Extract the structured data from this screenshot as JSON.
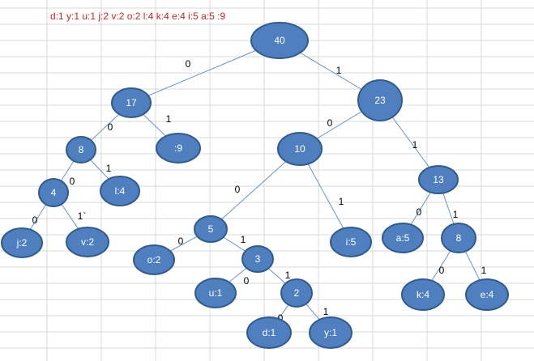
{
  "header": {
    "text": "d:1 y:1 u:1 j:2  v:2  o:2  l:4  k:4  e:4 i:5  a:5   :9"
  },
  "nodes": [
    {
      "label": "40"
    },
    {
      "label": "17"
    },
    {
      "label": "23"
    },
    {
      "label": "8"
    },
    {
      "label": ":9"
    },
    {
      "label": "10"
    },
    {
      "label": "13"
    },
    {
      "label": "4"
    },
    {
      "label": "l:4"
    },
    {
      "label": "5"
    },
    {
      "label": "i:5"
    },
    {
      "label": "a:5"
    },
    {
      "label": "8"
    },
    {
      "label": "j:2"
    },
    {
      "label": "v:2"
    },
    {
      "label": "o:2"
    },
    {
      "label": "3"
    },
    {
      "label": "u:1"
    },
    {
      "label": "2"
    },
    {
      "label": "k:4"
    },
    {
      "label": "e:4"
    },
    {
      "label": "d:1"
    },
    {
      "label": "y:1"
    }
  ],
  "edges": [
    {
      "label": "0"
    },
    {
      "label": "1"
    },
    {
      "label": "0"
    },
    {
      "label": "1"
    },
    {
      "label": "0"
    },
    {
      "label": "1"
    },
    {
      "label": "0"
    },
    {
      "label": "1"
    },
    {
      "label": "0"
    },
    {
      "label": "1"
    },
    {
      "label": "0"
    },
    {
      "label": "1"
    },
    {
      "label": "0"
    },
    {
      "label": "1`"
    },
    {
      "label": "0"
    },
    {
      "label": "1"
    },
    {
      "label": "0"
    },
    {
      "label": "1"
    },
    {
      "label": "0"
    },
    {
      "label": "1"
    },
    {
      "label": "0"
    },
    {
      "label": "1"
    }
  ]
}
